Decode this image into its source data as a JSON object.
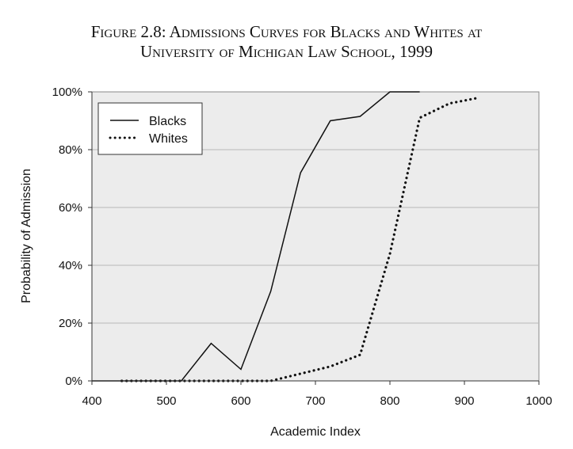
{
  "title_line1": "Figure 2.8: Admissions Curves for Blacks and Whites at",
  "title_line2": "University of Michigan Law School, 1999",
  "chart_data": {
    "type": "line",
    "title": "Figure 2.8: Admissions Curves for Blacks and Whites at University of Michigan Law School, 1999",
    "xlabel": "Academic Index",
    "ylabel": "Probability of Admission",
    "xlim": [
      400,
      1000
    ],
    "ylim": [
      0,
      100
    ],
    "x_ticks": [
      400,
      500,
      600,
      700,
      800,
      900,
      1000
    ],
    "y_ticks": [
      0,
      20,
      40,
      60,
      80,
      100
    ],
    "y_tick_labels": [
      "0%",
      "20%",
      "40%",
      "60%",
      "80%",
      "100%"
    ],
    "grid": "horizontal",
    "legend_position": "top-left",
    "series": [
      {
        "name": "Blacks",
        "style": "solid",
        "x": [
          400,
          520,
          560,
          600,
          640,
          680,
          720,
          760,
          800,
          840
        ],
        "y": [
          0,
          0,
          13,
          4,
          31,
          72,
          90,
          91.5,
          100,
          100
        ]
      },
      {
        "name": "Whites",
        "style": "dotted",
        "x": [
          440,
          480,
          520,
          560,
          600,
          640,
          680,
          720,
          760,
          800,
          840,
          880,
          920
        ],
        "y": [
          0,
          0,
          0,
          0,
          0,
          0,
          2.5,
          5,
          9,
          44,
          91,
          96,
          98
        ]
      }
    ]
  }
}
